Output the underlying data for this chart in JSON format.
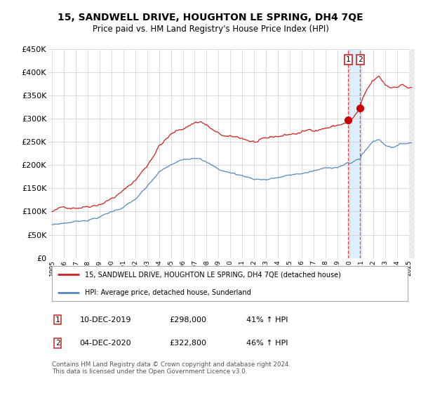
{
  "title": "15, SANDWELL DRIVE, HOUGHTON LE SPRING, DH4 7QE",
  "subtitle": "Price paid vs. HM Land Registry's House Price Index (HPI)",
  "ylim": [
    0,
    450000
  ],
  "yticks": [
    0,
    50000,
    100000,
    150000,
    200000,
    250000,
    300000,
    350000,
    400000,
    450000
  ],
  "ytick_labels": [
    "£0",
    "£50K",
    "£100K",
    "£150K",
    "£200K",
    "£250K",
    "£300K",
    "£350K",
    "£400K",
    "£450K"
  ],
  "xlim_start": 1994.7,
  "xlim_end": 2025.5,
  "xtick_years": [
    1995,
    1996,
    1997,
    1998,
    1999,
    2000,
    2001,
    2002,
    2003,
    2004,
    2005,
    2006,
    2007,
    2008,
    2009,
    2010,
    2011,
    2012,
    2013,
    2014,
    2015,
    2016,
    2017,
    2018,
    2019,
    2020,
    2021,
    2022,
    2023,
    2024,
    2025
  ],
  "red_line_color": "#cc2222",
  "blue_line_color": "#5588bb",
  "shade_color": "#ddeeff",
  "marker1_x": 2019.92,
  "marker1_y": 298000,
  "marker2_x": 2020.92,
  "marker2_y": 322800,
  "marker_color": "#cc0000",
  "legend_line1": "15, SANDWELL DRIVE, HOUGHTON LE SPRING, DH4 7QE (detached house)",
  "legend_line2": "HPI: Average price, detached house, Sunderland",
  "transaction1_date": "10-DEC-2019",
  "transaction1_price": "£298,000",
  "transaction1_note": "41% ↑ HPI",
  "transaction2_date": "04-DEC-2020",
  "transaction2_price": "£322,800",
  "transaction2_note": "46% ↑ HPI",
  "footnote": "Contains HM Land Registry data © Crown copyright and database right 2024.\nThis data is licensed under the Open Government Licence v3.0.",
  "background_color": "#ffffff",
  "grid_color": "#cccccc"
}
